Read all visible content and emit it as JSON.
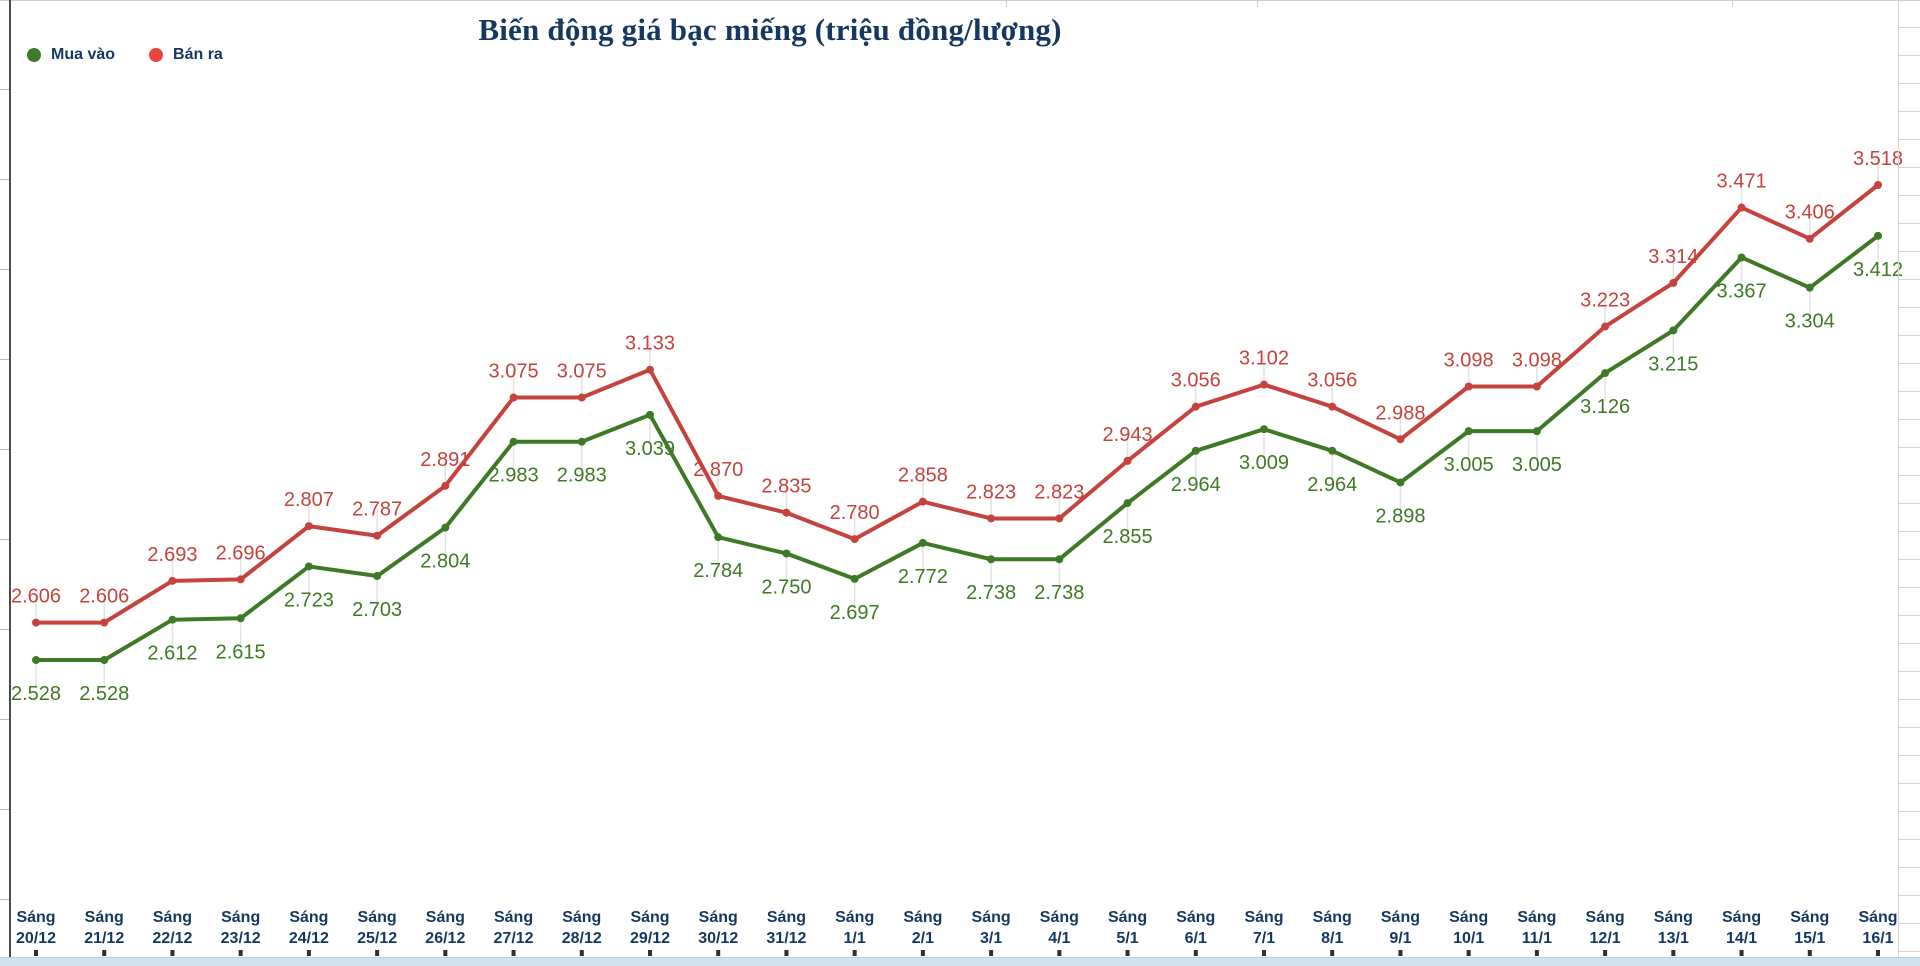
{
  "title": "Biến động giá bạc miếng (triệu đồng/lượng)",
  "legend": {
    "items": [
      {
        "label": "Mua vào",
        "color": "#3e7b28"
      },
      {
        "label": "Bán ra",
        "color": "#e8473f"
      }
    ]
  },
  "chart_data": {
    "type": "line",
    "title": "Biến động giá bạc miếng (triệu đồng/lượng)",
    "categories": [
      "Sáng 20/12",
      "Sáng 21/12",
      "Sáng 22/12",
      "Sáng 23/12",
      "Sáng 24/12",
      "Sáng 25/12",
      "Sáng 26/12",
      "Sáng 27/12",
      "Sáng 28/12",
      "Sáng 29/12",
      "Sáng 30/12",
      "Sáng 31/12",
      "Sáng 1/1",
      "Sáng 2/1",
      "Sáng 3/1",
      "Sáng 4/1",
      "Sáng 5/1",
      "Sáng 6/1",
      "Sáng 7/1",
      "Sáng 8/1",
      "Sáng 9/1",
      "Sáng 10/1",
      "Sáng 11/1",
      "Sáng 12/1",
      "Sáng 13/1",
      "Sáng 14/1",
      "Sáng 15/1",
      "Sáng 16/1"
    ],
    "series": [
      {
        "name": "Mua vào",
        "color": "#3e7926",
        "label_side": "below",
        "values": [
          2.528,
          2.528,
          2.612,
          2.615,
          2.723,
          2.703,
          2.804,
          2.983,
          2.983,
          3.039,
          2.784,
          2.75,
          2.697,
          2.772,
          2.738,
          2.738,
          2.855,
          2.964,
          3.009,
          2.964,
          2.898,
          3.005,
          3.005,
          3.126,
          3.215,
          3.367,
          3.304,
          3.412
        ]
      },
      {
        "name": "Bán ra",
        "color": "#c5433c",
        "label_side": "above",
        "values": [
          2.606,
          2.606,
          2.693,
          2.696,
          2.807,
          2.787,
          2.891,
          3.075,
          3.075,
          3.133,
          2.87,
          2.835,
          2.78,
          2.858,
          2.823,
          2.823,
          2.943,
          3.056,
          3.102,
          3.056,
          2.988,
          3.098,
          3.098,
          3.223,
          3.314,
          3.471,
          3.406,
          3.518
        ]
      }
    ],
    "value_labels": true,
    "value_format": "3 decimals",
    "ylim": [
      2.45,
      3.6
    ],
    "grid": "per-point vertical stubs",
    "legend_position": "top-left",
    "x_label_style": "two-line: Sáng / date"
  },
  "colors": {
    "title": "#16375f",
    "axis_labels": "#16375f",
    "background": "#ffffff",
    "grid_stub": "#e2e2e2",
    "tick": "#2f2f2f",
    "bottom_strip": "#d2e1ef",
    "frame_dark": "#4a4a4a",
    "frame_light": "#d4d4d4"
  }
}
